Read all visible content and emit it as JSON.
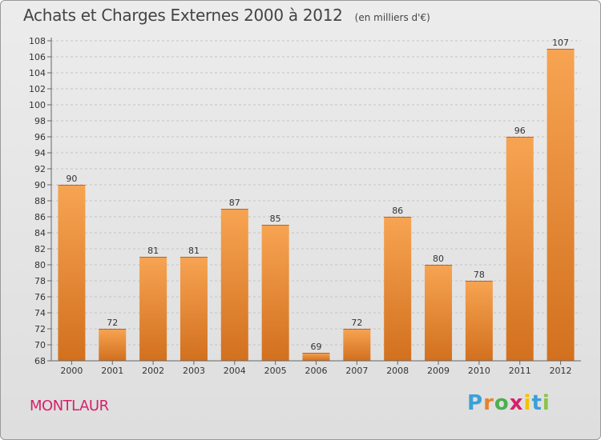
{
  "header": {
    "title": "Achats et Charges Externes 2000 à 2012",
    "unit": "(en milliers d'€)"
  },
  "footer": {
    "commune": "MONTLAUR",
    "logo": {
      "text": "Proxiti",
      "colors": [
        "#3aa0d8",
        "#e8822a",
        "#4caf50",
        "#d6216a",
        "#f2c200",
        "#3aa0d8",
        "#8bc34a"
      ]
    }
  },
  "chart_data": {
    "type": "bar",
    "categories": [
      "2000",
      "2001",
      "2002",
      "2003",
      "2004",
      "2005",
      "2006",
      "2007",
      "2008",
      "2009",
      "2010",
      "2011",
      "2012"
    ],
    "values": [
      90,
      72,
      81,
      81,
      87,
      85,
      69,
      72,
      86,
      80,
      78,
      96,
      107
    ],
    "ylim": [
      68,
      108
    ],
    "ytick_step": 2,
    "grid": "horizontal dashed",
    "bar_color": "#f08a32"
  }
}
